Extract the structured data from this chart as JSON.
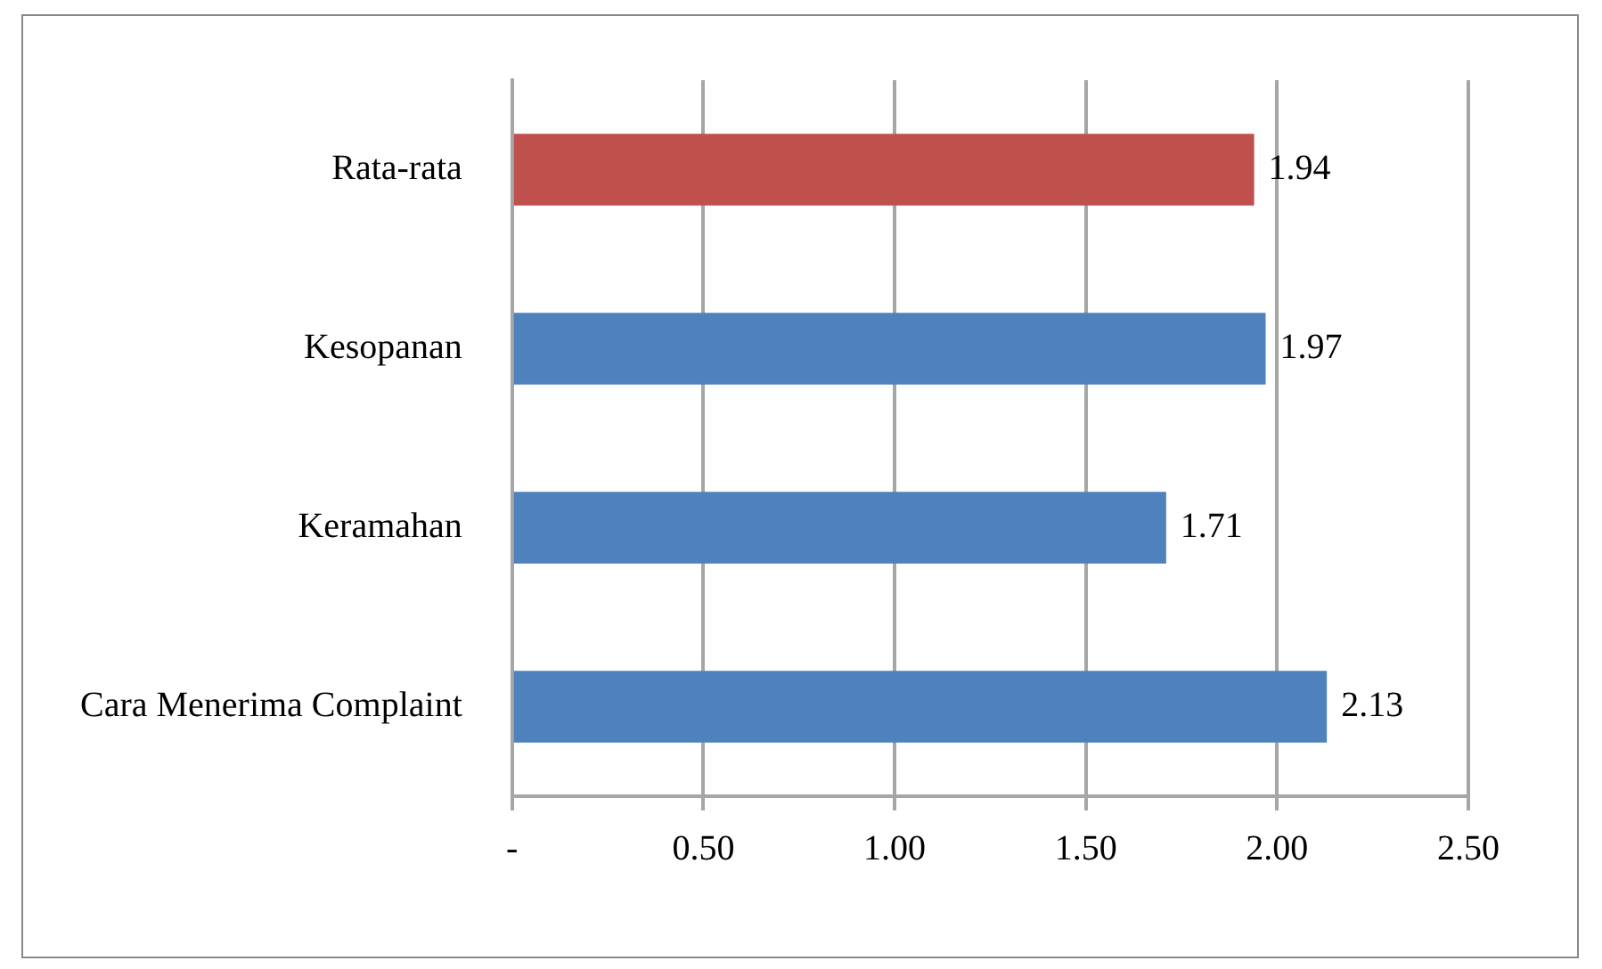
{
  "chart_data": {
    "type": "bar",
    "orientation": "horizontal",
    "categories": [
      "Rata-rata",
      "Kesopanan",
      "Keramahan",
      "Cara Menerima Complaint"
    ],
    "values": [
      1.94,
      1.97,
      1.71,
      2.13
    ],
    "colors": [
      "#c0504d",
      "#4f81bd",
      "#4f81bd",
      "#4f81bd"
    ],
    "xlim": [
      0,
      2.5
    ],
    "xticks": [
      {
        "value": 0,
        "label": "-"
      },
      {
        "value": 0.5,
        "label": "0.50"
      },
      {
        "value": 1,
        "label": "1.00"
      },
      {
        "value": 1.5,
        "label": "1.50"
      },
      {
        "value": 2,
        "label": "2.00"
      },
      {
        "value": 2.5,
        "label": "2.50"
      }
    ],
    "grid": "x",
    "legend": false,
    "data_labels": true
  }
}
